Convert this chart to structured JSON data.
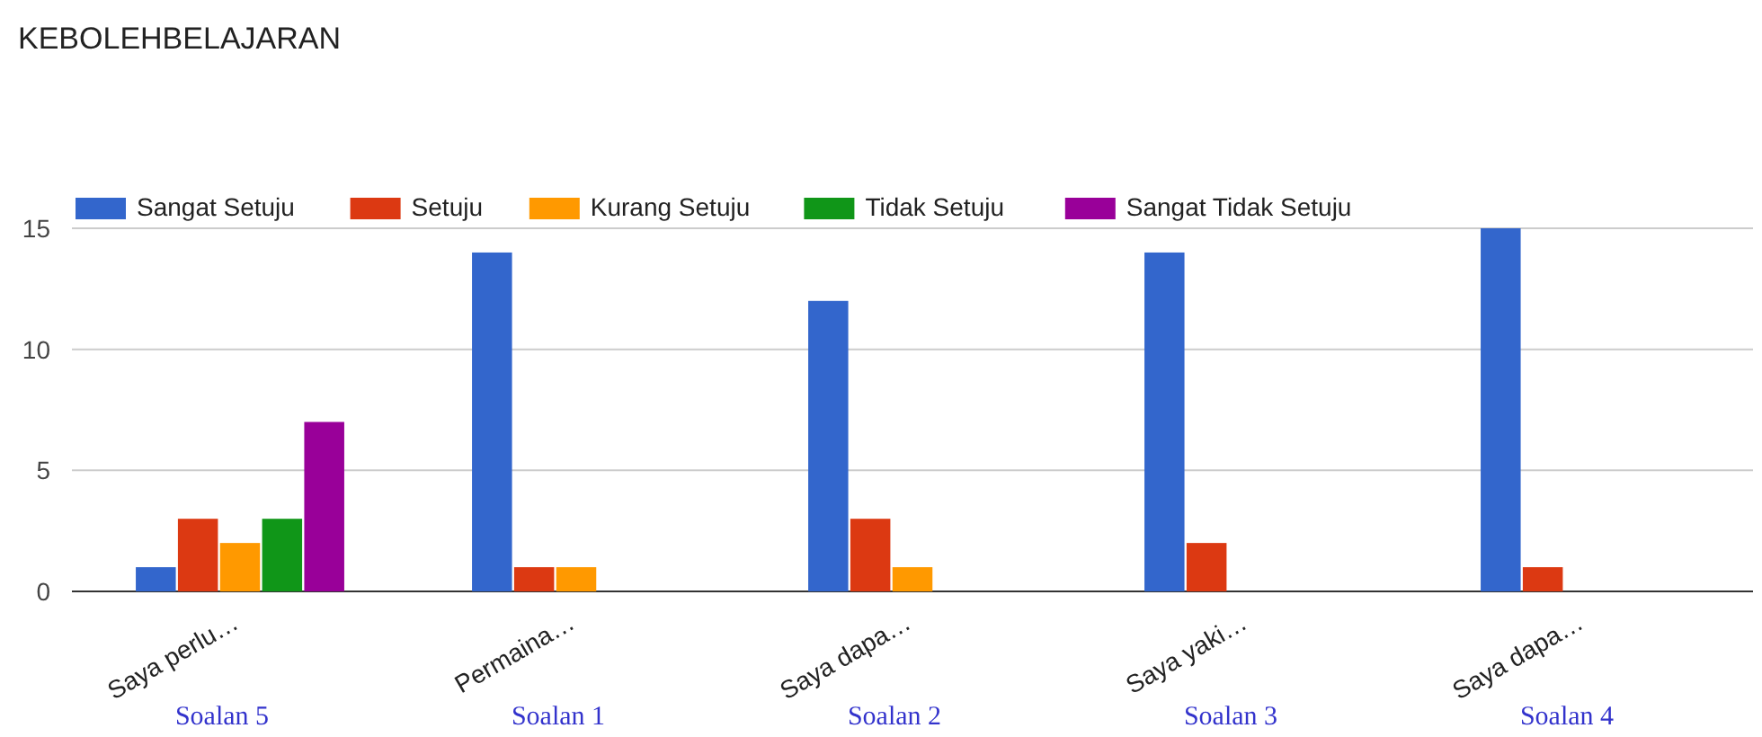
{
  "chart_data": {
    "type": "bar",
    "title": "KEBOLEHBELAJARAN",
    "categories": [
      "Saya perlu…",
      "Permaina…",
      "Saya dapa…",
      "Saya yaki…",
      "Saya dapa…"
    ],
    "series": [
      {
        "name": "Sangat Setuju",
        "color": "#3366cc",
        "values": [
          1,
          14,
          12,
          14,
          15
        ]
      },
      {
        "name": "Setuju",
        "color": "#dc3912",
        "values": [
          3,
          1,
          3,
          2,
          1
        ]
      },
      {
        "name": "Kurang Setuju",
        "color": "#ff9900",
        "values": [
          2,
          1,
          1,
          0,
          0
        ]
      },
      {
        "name": "Tidak Setuju",
        "color": "#109618",
        "values": [
          3,
          0,
          0,
          0,
          0
        ]
      },
      {
        "name": "Sangat Tidak Setuju",
        "color": "#990099",
        "values": [
          7,
          0,
          0,
          0,
          0
        ]
      }
    ],
    "ylim": [
      0,
      15
    ],
    "yticks": [
      0,
      5,
      10,
      15
    ],
    "grid": "y",
    "legend": "top left",
    "annotations": [
      "Soalan 5",
      "Soalan 1",
      "Soalan 2",
      "Soalan 3",
      "Soalan 4"
    ]
  }
}
